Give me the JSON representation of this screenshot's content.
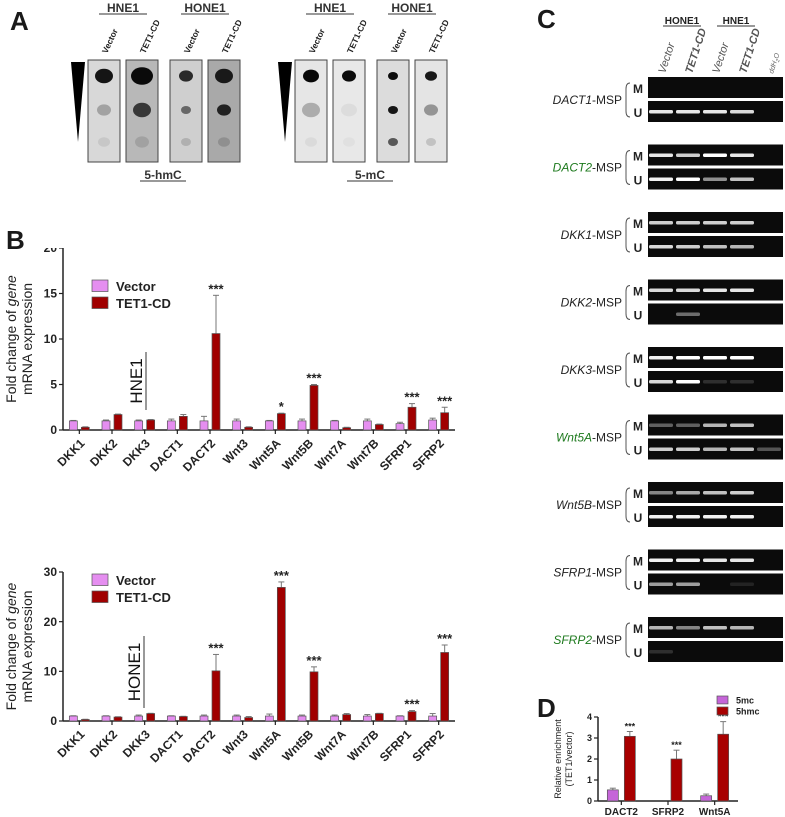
{
  "panels": {
    "A": {
      "letter": "A",
      "blot_groups": [
        {
          "label": "5-hmC",
          "cells": [
            {
              "name": "HNE1",
              "lanes": [
                "Vector",
                "TET1-CD"
              ]
            },
            {
              "name": "HONE1",
              "lanes": [
                "Vector",
                "TET1-CD"
              ]
            }
          ]
        },
        {
          "label": "5-mC",
          "cells": [
            {
              "name": "HNE1",
              "lanes": [
                "Vector",
                "TET1-CD"
              ]
            },
            {
              "name": "HONE1",
              "lanes": [
                "Vector",
                "TET1-CD"
              ]
            }
          ]
        }
      ]
    },
    "B": {
      "letter": "B"
    },
    "C": {
      "letter": "C",
      "cell_headers": [
        "HONE1",
        "HNE1"
      ],
      "lanes": [
        "Vector",
        "TET1-CD",
        "Vector",
        "TET1-CD",
        "ddH2O"
      ],
      "assays": [
        {
          "gene": "DACT1",
          "suffix": "-MSP",
          "highlight": false
        },
        {
          "gene": "DACT2",
          "suffix": "-MSP",
          "highlight": true
        },
        {
          "gene": "DKK1",
          "suffix": "-MSP",
          "highlight": false
        },
        {
          "gene": "DKK2",
          "suffix": "-MSP",
          "highlight": false
        },
        {
          "gene": "DKK3",
          "suffix": "-MSP",
          "highlight": false
        },
        {
          "gene": "Wnt5A",
          "suffix": "-MSP",
          "highlight": true
        },
        {
          "gene": "Wnt5B",
          "suffix": "-MSP",
          "highlight": false
        },
        {
          "gene": "SFRP1",
          "suffix": "-MSP",
          "highlight": false
        },
        {
          "gene": "SFRP2",
          "suffix": "-MSP",
          "highlight": true
        }
      ],
      "row_labels": [
        "M",
        "U"
      ]
    },
    "D": {
      "letter": "D"
    }
  },
  "colors": {
    "vector": "#e58ef0",
    "tet1": "#a00000",
    "mc5": "#c565d8",
    "hmc5": "#a80000",
    "highlight_gene": "#1e7a1e"
  },
  "chart_data": [
    {
      "id": "B-HNE1",
      "type": "bar",
      "title": "HNE1",
      "xlabel": "",
      "ylabel": "Fold change of gene mRNA expression",
      "ylim": [
        0,
        20
      ],
      "yticks": [
        0,
        5,
        10,
        15,
        20
      ],
      "legend": [
        "Vector",
        "TET1-CD"
      ],
      "categories": [
        "DKK1",
        "DKK2",
        "DKK3",
        "DACT1",
        "DACT2",
        "Wnt3",
        "Wnt5A",
        "Wnt5B",
        "Wnt7A",
        "Wnt7B",
        "SFRP1",
        "SFRP2"
      ],
      "series": [
        {
          "name": "Vector",
          "values": [
            1.0,
            1.0,
            1.0,
            1.0,
            1.0,
            1.0,
            1.0,
            1.0,
            1.0,
            1.0,
            0.7,
            1.1
          ],
          "errors": [
            0.05,
            0.1,
            0.1,
            0.2,
            0.5,
            0.2,
            0.05,
            0.2,
            0.05,
            0.2,
            0.15,
            0.2
          ]
        },
        {
          "name": "TET1-CD",
          "values": [
            0.3,
            1.7,
            1.1,
            1.5,
            10.6,
            0.3,
            1.8,
            4.9,
            0.25,
            0.6,
            2.5,
            1.9
          ],
          "errors": [
            0.05,
            0.05,
            0.05,
            0.2,
            4.2,
            0.05,
            0.05,
            0.1,
            0.05,
            0.05,
            0.4,
            0.6
          ]
        }
      ],
      "significance": [
        "",
        "",
        "",
        "",
        "***",
        "",
        "*",
        "***",
        "",
        "",
        "***",
        "***"
      ]
    },
    {
      "id": "B-HONE1",
      "type": "bar",
      "title": "HONE1",
      "xlabel": "",
      "ylabel": "Fold change of gene mRNA expression",
      "ylim": [
        0,
        30
      ],
      "yticks": [
        0,
        10,
        20,
        30
      ],
      "legend": [
        "Vector",
        "TET1-CD"
      ],
      "categories": [
        "DKK1",
        "DKK2",
        "DKK3",
        "DACT1",
        "DACT2",
        "Wnt3",
        "Wnt5A",
        "Wnt5B",
        "Wnt7A",
        "Wnt7B",
        "SFRP1",
        "SFRP2"
      ],
      "series": [
        {
          "name": "Vector",
          "values": [
            1.0,
            1.0,
            1.0,
            1.0,
            1.0,
            1.0,
            1.0,
            1.0,
            1.0,
            1.0,
            1.0,
            1.0
          ],
          "errors": [
            0.05,
            0.05,
            0.2,
            0.05,
            0.2,
            0.2,
            0.4,
            0.2,
            0.2,
            0.3,
            0.05,
            0.5
          ]
        },
        {
          "name": "TET1-CD",
          "values": [
            0.3,
            0.8,
            1.5,
            0.9,
            10.1,
            0.7,
            26.9,
            9.9,
            1.3,
            1.5,
            1.9,
            13.8
          ],
          "errors": [
            0.05,
            0.05,
            0.05,
            0.05,
            3.3,
            0.2,
            1.1,
            1.0,
            0.2,
            0.05,
            0.2,
            1.5
          ]
        }
      ],
      "significance": [
        "",
        "",
        "",
        "",
        "***",
        "",
        "***",
        "***",
        "",
        "",
        "***",
        "***"
      ]
    },
    {
      "id": "D",
      "type": "bar",
      "title": "",
      "xlabel": "",
      "ylabel": "Relative enrichment (TET1/vector)",
      "ylim": [
        0,
        4
      ],
      "yticks": [
        0,
        1,
        2,
        3,
        4
      ],
      "legend": [
        "5mc",
        "5hmc"
      ],
      "categories": [
        "DACT2",
        "SFRP2",
        "Wnt5A"
      ],
      "series": [
        {
          "name": "5mc",
          "values": [
            0.53,
            0.0,
            0.25
          ],
          "errors": [
            0.08,
            0.0,
            0.08
          ]
        },
        {
          "name": "5hmc",
          "values": [
            3.08,
            2.0,
            3.18
          ],
          "errors": [
            0.23,
            0.42,
            0.6
          ]
        }
      ],
      "significance": [
        "***",
        "***",
        "***"
      ]
    }
  ]
}
